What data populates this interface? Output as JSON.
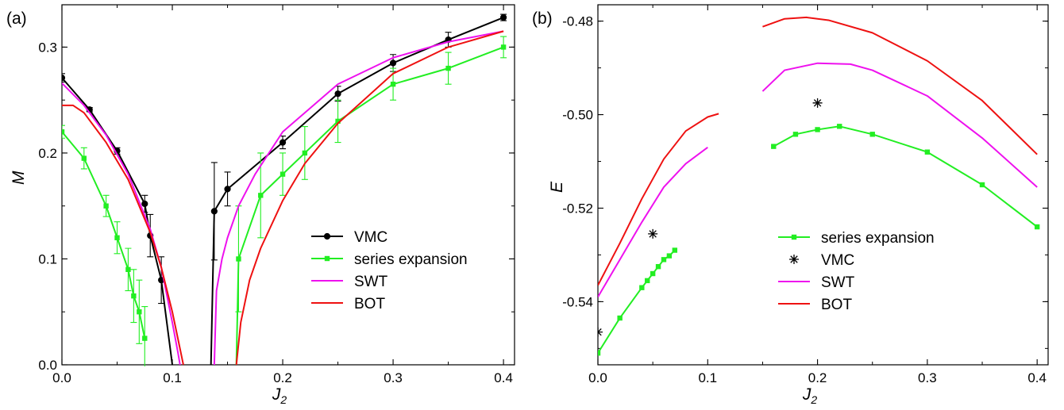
{
  "chart_data": [
    {
      "type": "line",
      "panel_label": "(a)",
      "xlabel": "J",
      "xlabel_sub": "2",
      "ylabel": "M",
      "xlim": [
        0.0,
        0.41
      ],
      "ylim": [
        0.0,
        0.34
      ],
      "xticks": [
        0.0,
        0.1,
        0.2,
        0.3,
        0.4
      ],
      "xtick_labels": [
        "0.0",
        "0.1",
        "0.2",
        "0.3",
        "0.4"
      ],
      "yticks": [
        0.0,
        0.1,
        0.2,
        0.3
      ],
      "ytick_labels": [
        "0.0",
        "0.1",
        "0.2",
        "0.3"
      ],
      "legend_position": "center-right",
      "series": [
        {
          "name": "VMC",
          "color": "#000000",
          "marker": "circle",
          "legend": true,
          "segments": [
            {
              "x": [
                0.0,
                0.025,
                0.05,
                0.075,
                0.08,
                0.09,
                0.1
              ],
              "y": [
                0.271,
                0.241,
                0.202,
                0.152,
                0.122,
                0.08,
                0.0
              ],
              "err": [
                0.004,
                0.002,
                0.003,
                0.008,
                0.02,
                0.022,
                0.0
              ]
            },
            {
              "x": [
                0.135,
                0.138,
                0.15,
                0.2,
                0.25,
                0.3,
                0.35,
                0.4
              ],
              "y": [
                0.0,
                0.145,
                0.166,
                0.21,
                0.256,
                0.285,
                0.307,
                0.328
              ],
              "err": [
                0.0,
                0.046,
                0.016,
                0.006,
                0.007,
                0.008,
                0.007,
                0.003
              ]
            }
          ]
        },
        {
          "name": "series expansion",
          "color": "#22ee22",
          "marker": "square",
          "legend": true,
          "segments": [
            {
              "x": [
                0.0,
                0.02,
                0.04,
                0.05,
                0.06,
                0.065,
                0.07,
                0.075
              ],
              "y": [
                0.22,
                0.195,
                0.15,
                0.12,
                0.09,
                0.065,
                0.05,
                0.025
              ],
              "err": [
                0.006,
                0.01,
                0.01,
                0.015,
                0.02,
                0.025,
                0.03,
                0.03
              ]
            },
            {
              "x": [
                0.158,
                0.16,
                0.18,
                0.2,
                0.22,
                0.25,
                0.3,
                0.35,
                0.4
              ],
              "y": [
                0.0,
                0.1,
                0.16,
                0.18,
                0.2,
                0.23,
                0.265,
                0.28,
                0.3
              ],
              "err": [
                0.0,
                0.05,
                0.04,
                0.02,
                0.025,
                0.02,
                0.015,
                0.015,
                0.01
              ],
              "marker_from": 1
            }
          ]
        },
        {
          "name": "SWT",
          "color": "#ee11ee",
          "marker": "none",
          "legend": true,
          "segments": [
            {
              "x": [
                0.0,
                0.02,
                0.04,
                0.06,
                0.08,
                0.09,
                0.1,
                0.105,
                0.107
              ],
              "y": [
                0.266,
                0.245,
                0.217,
                0.18,
                0.128,
                0.092,
                0.04,
                0.012,
                0.0
              ]
            },
            {
              "x": [
                0.138,
                0.14,
                0.145,
                0.15,
                0.16,
                0.175,
                0.2,
                0.25,
                0.3,
                0.35,
                0.4
              ],
              "y": [
                0.0,
                0.07,
                0.1,
                0.12,
                0.15,
                0.18,
                0.22,
                0.265,
                0.29,
                0.305,
                0.315
              ]
            }
          ]
        },
        {
          "name": "BOT",
          "color": "#ee1111",
          "marker": "none",
          "legend": true,
          "segments": [
            {
              "x": [
                0.0,
                0.01,
                0.02,
                0.04,
                0.06,
                0.08,
                0.09,
                0.1,
                0.105,
                0.11
              ],
              "y": [
                0.245,
                0.245,
                0.238,
                0.21,
                0.175,
                0.125,
                0.092,
                0.05,
                0.025,
                0.0
              ]
            },
            {
              "x": [
                0.158,
                0.162,
                0.17,
                0.18,
                0.2,
                0.22,
                0.25,
                0.3,
                0.35,
                0.4
              ],
              "y": [
                0.0,
                0.04,
                0.08,
                0.11,
                0.155,
                0.19,
                0.228,
                0.275,
                0.3,
                0.315
              ]
            }
          ]
        }
      ]
    },
    {
      "type": "line",
      "panel_label": "(b)",
      "xlabel": "J",
      "xlabel_sub": "2",
      "ylabel": "E",
      "xlim": [
        0.0,
        0.41
      ],
      "ylim": [
        -0.5535,
        -0.4765
      ],
      "xticks": [
        0.0,
        0.1,
        0.2,
        0.3,
        0.4
      ],
      "xtick_labels": [
        "0.0",
        "0.1",
        "0.2",
        "0.3",
        "0.4"
      ],
      "yticks": [
        -0.48,
        -0.5,
        -0.52,
        -0.54
      ],
      "ytick_labels": [
        "-0.48",
        "-0.50",
        "-0.52",
        "-0.54"
      ],
      "legend_position": "bottom-right",
      "series": [
        {
          "name": "series expansion",
          "color": "#22ee22",
          "marker": "square",
          "legend": true,
          "segments": [
            {
              "x": [
                0.0,
                0.02,
                0.04,
                0.045,
                0.05,
                0.055,
                0.06,
                0.065,
                0.07
              ],
              "y": [
                -0.551,
                -0.5435,
                -0.537,
                -0.5355,
                -0.534,
                -0.5325,
                -0.531,
                -0.5302,
                -0.529
              ]
            },
            {
              "x": [
                0.16,
                0.18,
                0.2,
                0.22,
                0.25,
                0.3,
                0.35,
                0.4
              ],
              "y": [
                -0.5068,
                -0.5042,
                -0.5032,
                -0.5025,
                -0.5042,
                -0.508,
                -0.515,
                -0.524
              ]
            }
          ]
        },
        {
          "name": "VMC",
          "color": "#000000",
          "marker": "asterisk",
          "legend": true,
          "segments": [
            {
              "x": [
                0.0,
                0.05,
                0.2
              ],
              "y": [
                -0.5465,
                -0.5255,
                -0.4975
              ]
            }
          ]
        },
        {
          "name": "SWT",
          "color": "#ee11ee",
          "marker": "none",
          "legend": true,
          "segments": [
            {
              "x": [
                0.0,
                0.02,
                0.04,
                0.06,
                0.08,
                0.1
              ],
              "y": [
                -0.539,
                -0.531,
                -0.523,
                -0.5155,
                -0.5105,
                -0.507
              ]
            },
            {
              "x": [
                0.15,
                0.17,
                0.2,
                0.23,
                0.25,
                0.3,
                0.35,
                0.4
              ],
              "y": [
                -0.495,
                -0.4905,
                -0.489,
                -0.4892,
                -0.4905,
                -0.496,
                -0.505,
                -0.5155
              ]
            }
          ]
        },
        {
          "name": "BOT",
          "color": "#ee1111",
          "marker": "none",
          "legend": true,
          "segments": [
            {
              "x": [
                0.0,
                0.02,
                0.04,
                0.06,
                0.08,
                0.1,
                0.11
              ],
              "y": [
                -0.5365,
                -0.5275,
                -0.518,
                -0.5095,
                -0.5035,
                -0.5005,
                -0.4998
              ]
            },
            {
              "x": [
                0.15,
                0.17,
                0.19,
                0.21,
                0.25,
                0.3,
                0.35,
                0.4
              ],
              "y": [
                -0.4812,
                -0.4795,
                -0.4792,
                -0.4798,
                -0.4825,
                -0.4885,
                -0.497,
                -0.5085
              ]
            }
          ]
        }
      ]
    }
  ]
}
